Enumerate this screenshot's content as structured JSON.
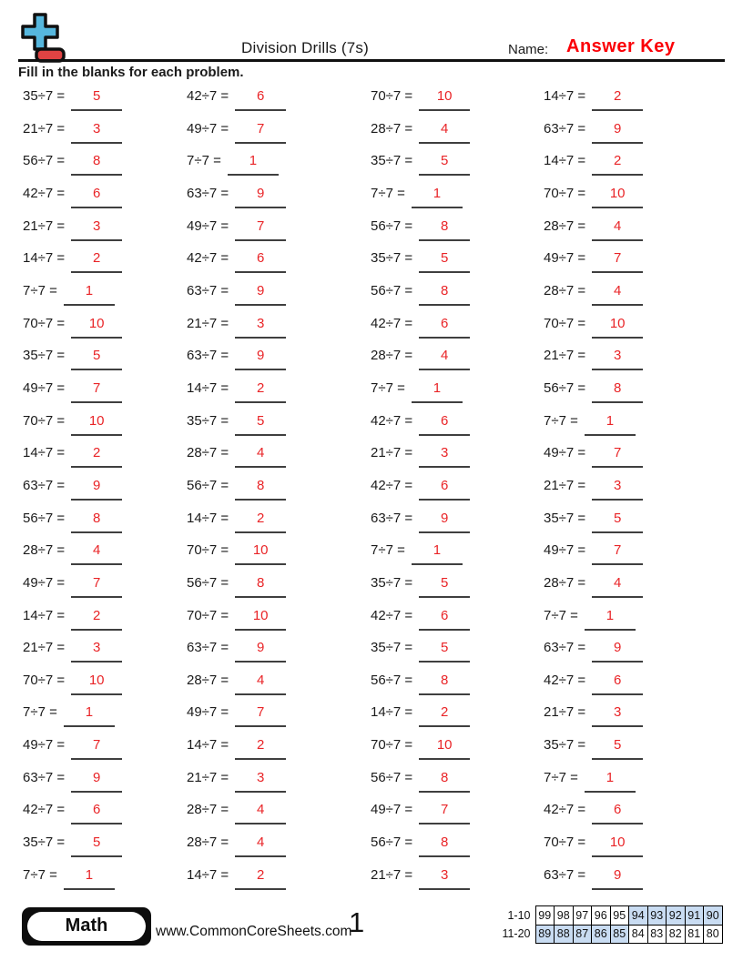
{
  "header": {
    "title": "Division Drills (7s)",
    "name_label": "Name:",
    "name_value": "Answer Key",
    "instructions": "Fill in the blanks for each problem.",
    "logo_icon": "plus-minus-math-logo"
  },
  "columns": [
    {
      "problems": [
        {
          "expr": "35÷7 =",
          "ans": "5"
        },
        {
          "expr": "21÷7 =",
          "ans": "3"
        },
        {
          "expr": "56÷7 =",
          "ans": "8"
        },
        {
          "expr": "42÷7 =",
          "ans": "6"
        },
        {
          "expr": "21÷7 =",
          "ans": "3"
        },
        {
          "expr": "14÷7 =",
          "ans": "2"
        },
        {
          "expr": "7÷7 =",
          "ans": "1"
        },
        {
          "expr": "70÷7 =",
          "ans": "10"
        },
        {
          "expr": "35÷7 =",
          "ans": "5"
        },
        {
          "expr": "49÷7 =",
          "ans": "7"
        },
        {
          "expr": "70÷7 =",
          "ans": "10"
        },
        {
          "expr": "14÷7 =",
          "ans": "2"
        },
        {
          "expr": "63÷7 =",
          "ans": "9"
        },
        {
          "expr": "56÷7 =",
          "ans": "8"
        },
        {
          "expr": "28÷7 =",
          "ans": "4"
        },
        {
          "expr": "49÷7 =",
          "ans": "7"
        },
        {
          "expr": "14÷7 =",
          "ans": "2"
        },
        {
          "expr": "21÷7 =",
          "ans": "3"
        },
        {
          "expr": "70÷7 =",
          "ans": "10"
        },
        {
          "expr": "7÷7 =",
          "ans": "1"
        },
        {
          "expr": "49÷7 =",
          "ans": "7"
        },
        {
          "expr": "63÷7 =",
          "ans": "9"
        },
        {
          "expr": "42÷7 =",
          "ans": "6"
        },
        {
          "expr": "35÷7 =",
          "ans": "5"
        },
        {
          "expr": "7÷7 =",
          "ans": "1"
        }
      ]
    },
    {
      "problems": [
        {
          "expr": "42÷7 =",
          "ans": "6"
        },
        {
          "expr": "49÷7 =",
          "ans": "7"
        },
        {
          "expr": "7÷7 =",
          "ans": "1"
        },
        {
          "expr": "63÷7 =",
          "ans": "9"
        },
        {
          "expr": "49÷7 =",
          "ans": "7"
        },
        {
          "expr": "42÷7 =",
          "ans": "6"
        },
        {
          "expr": "63÷7 =",
          "ans": "9"
        },
        {
          "expr": "21÷7 =",
          "ans": "3"
        },
        {
          "expr": "63÷7 =",
          "ans": "9"
        },
        {
          "expr": "14÷7 =",
          "ans": "2"
        },
        {
          "expr": "35÷7 =",
          "ans": "5"
        },
        {
          "expr": "28÷7 =",
          "ans": "4"
        },
        {
          "expr": "56÷7 =",
          "ans": "8"
        },
        {
          "expr": "14÷7 =",
          "ans": "2"
        },
        {
          "expr": "70÷7 =",
          "ans": "10"
        },
        {
          "expr": "56÷7 =",
          "ans": "8"
        },
        {
          "expr": "70÷7 =",
          "ans": "10"
        },
        {
          "expr": "63÷7 =",
          "ans": "9"
        },
        {
          "expr": "28÷7 =",
          "ans": "4"
        },
        {
          "expr": "49÷7 =",
          "ans": "7"
        },
        {
          "expr": "14÷7 =",
          "ans": "2"
        },
        {
          "expr": "21÷7 =",
          "ans": "3"
        },
        {
          "expr": "28÷7 =",
          "ans": "4"
        },
        {
          "expr": "28÷7 =",
          "ans": "4"
        },
        {
          "expr": "14÷7 =",
          "ans": "2"
        }
      ]
    },
    {
      "problems": [
        {
          "expr": "70÷7 =",
          "ans": "10"
        },
        {
          "expr": "28÷7 =",
          "ans": "4"
        },
        {
          "expr": "35÷7 =",
          "ans": "5"
        },
        {
          "expr": "7÷7 =",
          "ans": "1"
        },
        {
          "expr": "56÷7 =",
          "ans": "8"
        },
        {
          "expr": "35÷7 =",
          "ans": "5"
        },
        {
          "expr": "56÷7 =",
          "ans": "8"
        },
        {
          "expr": "42÷7 =",
          "ans": "6"
        },
        {
          "expr": "28÷7 =",
          "ans": "4"
        },
        {
          "expr": "7÷7 =",
          "ans": "1"
        },
        {
          "expr": "42÷7 =",
          "ans": "6"
        },
        {
          "expr": "21÷7 =",
          "ans": "3"
        },
        {
          "expr": "42÷7 =",
          "ans": "6"
        },
        {
          "expr": "63÷7 =",
          "ans": "9"
        },
        {
          "expr": "7÷7 =",
          "ans": "1"
        },
        {
          "expr": "35÷7 =",
          "ans": "5"
        },
        {
          "expr": "42÷7 =",
          "ans": "6"
        },
        {
          "expr": "35÷7 =",
          "ans": "5"
        },
        {
          "expr": "56÷7 =",
          "ans": "8"
        },
        {
          "expr": "14÷7 =",
          "ans": "2"
        },
        {
          "expr": "70÷7 =",
          "ans": "10"
        },
        {
          "expr": "56÷7 =",
          "ans": "8"
        },
        {
          "expr": "49÷7 =",
          "ans": "7"
        },
        {
          "expr": "56÷7 =",
          "ans": "8"
        },
        {
          "expr": "21÷7 =",
          "ans": "3"
        }
      ]
    },
    {
      "problems": [
        {
          "expr": "14÷7 =",
          "ans": "2"
        },
        {
          "expr": "63÷7 =",
          "ans": "9"
        },
        {
          "expr": "14÷7 =",
          "ans": "2"
        },
        {
          "expr": "70÷7 =",
          "ans": "10"
        },
        {
          "expr": "28÷7 =",
          "ans": "4"
        },
        {
          "expr": "49÷7 =",
          "ans": "7"
        },
        {
          "expr": "28÷7 =",
          "ans": "4"
        },
        {
          "expr": "70÷7 =",
          "ans": "10"
        },
        {
          "expr": "21÷7 =",
          "ans": "3"
        },
        {
          "expr": "56÷7 =",
          "ans": "8"
        },
        {
          "expr": "7÷7 =",
          "ans": "1"
        },
        {
          "expr": "49÷7 =",
          "ans": "7"
        },
        {
          "expr": "21÷7 =",
          "ans": "3"
        },
        {
          "expr": "35÷7 =",
          "ans": "5"
        },
        {
          "expr": "49÷7 =",
          "ans": "7"
        },
        {
          "expr": "28÷7 =",
          "ans": "4"
        },
        {
          "expr": "7÷7 =",
          "ans": "1"
        },
        {
          "expr": "63÷7 =",
          "ans": "9"
        },
        {
          "expr": "42÷7 =",
          "ans": "6"
        },
        {
          "expr": "21÷7 =",
          "ans": "3"
        },
        {
          "expr": "35÷7 =",
          "ans": "5"
        },
        {
          "expr": "7÷7 =",
          "ans": "1"
        },
        {
          "expr": "42÷7 =",
          "ans": "6"
        },
        {
          "expr": "70÷7 =",
          "ans": "10"
        },
        {
          "expr": "63÷7 =",
          "ans": "9"
        }
      ]
    }
  ],
  "footer": {
    "subject_badge": "Math",
    "website": "www.CommonCoreSheets.com",
    "page_number": "1",
    "score_table": {
      "rows": [
        {
          "label": "1-10",
          "values": [
            "99",
            "98",
            "97",
            "96",
            "95",
            "94",
            "93",
            "92",
            "91",
            "90"
          ],
          "highlighted": [
            false,
            false,
            false,
            false,
            false,
            true,
            true,
            true,
            true,
            true
          ]
        },
        {
          "label": "11-20",
          "values": [
            "89",
            "88",
            "87",
            "86",
            "85",
            "84",
            "83",
            "82",
            "81",
            "80"
          ],
          "highlighted": [
            true,
            true,
            true,
            true,
            true,
            false,
            false,
            false,
            false,
            false
          ]
        }
      ]
    }
  },
  "colors": {
    "answer_red": "#e92427",
    "key_red": "#fb0007",
    "ink": "#1b1b1b",
    "line_gray": "#3f3f3f",
    "score_hl": "#c9dcf2",
    "logo_blue": "#56b7de",
    "logo_red": "#e04343"
  }
}
